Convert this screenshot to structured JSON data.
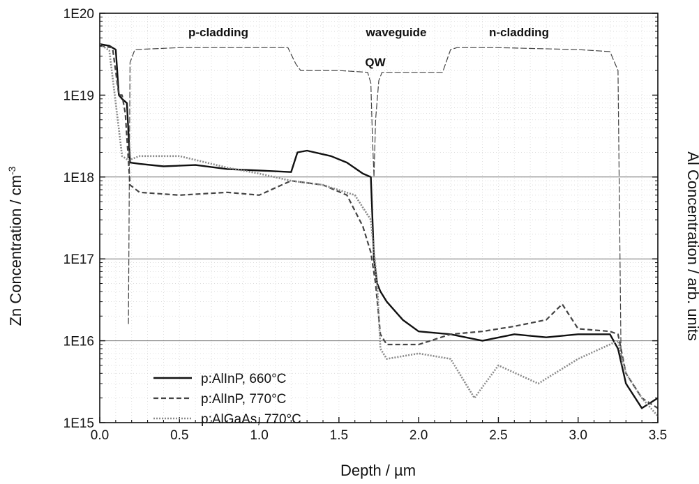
{
  "chart_data": {
    "type": "line",
    "title": "",
    "xlabel": "Depth / µm",
    "ylabel": "Zn Concentration / cm",
    "ylabel_superscript": "-3",
    "y2label": "Al Concentration / arb. units",
    "xlim": [
      0.0,
      3.5
    ],
    "ylim": [
      1000000000000000.0,
      1e+20
    ],
    "yscale": "log",
    "x_ticks": [
      "0.0",
      "0.5",
      "1.0",
      "1.5",
      "2.0",
      "2.5",
      "3.0",
      "3.5"
    ],
    "y_ticks": [
      "1E15",
      "1E16",
      "1E17",
      "1E18",
      "1E19",
      "1E20"
    ],
    "grid": "dotted",
    "reference_lines_y": [
      1e+16,
      1e+17,
      1e+18
    ],
    "region_labels": [
      "p-cladding",
      "waveguide",
      "QW",
      "n-cladding"
    ],
    "legend_position": "lower-left",
    "series": [
      {
        "name": "p:AlInP, 660°C",
        "style": "solid",
        "color": "#111111",
        "x": [
          0.0,
          0.06,
          0.1,
          0.12,
          0.14,
          0.17,
          0.19,
          0.25,
          0.4,
          0.6,
          0.8,
          1.0,
          1.2,
          1.24,
          1.3,
          1.45,
          1.55,
          1.65,
          1.7,
          1.72,
          1.74,
          1.76,
          1.8,
          1.9,
          2.0,
          2.2,
          2.4,
          2.6,
          2.8,
          3.0,
          3.2,
          3.25,
          3.3,
          3.4,
          3.5
        ],
        "y": [
          4.2e+19,
          4e+19,
          3.6e+19,
          1e+19,
          9e+18,
          8e+18,
          1.5e+18,
          1.45e+18,
          1.35e+18,
          1.4e+18,
          1.25e+18,
          1.2e+18,
          1.15e+18,
          2e+18,
          2.1e+18,
          1.8e+18,
          1.5e+18,
          1.1e+18,
          1e+18,
          1e+17,
          5e+16,
          4e+16,
          3e+16,
          1.8e+16,
          1.3e+16,
          1.2e+16,
          1e+16,
          1.2e+16,
          1.1e+16,
          1.2e+16,
          1.2e+16,
          8000000000000000.0,
          3000000000000000.0,
          1500000000000000.0,
          2000000000000000.0
        ]
      },
      {
        "name": "p:AlInP, 770°C",
        "style": "dashed",
        "color": "#444444",
        "x": [
          0.0,
          0.08,
          0.12,
          0.14,
          0.16,
          0.19,
          0.25,
          0.5,
          0.8,
          1.0,
          1.2,
          1.4,
          1.55,
          1.65,
          1.7,
          1.73,
          1.76,
          1.8,
          2.0,
          2.2,
          2.4,
          2.6,
          2.8,
          2.9,
          3.0,
          3.2,
          3.25,
          3.3,
          3.4,
          3.5
        ],
        "y": [
          4e+19,
          3.8e+19,
          1e+19,
          1e+19,
          6e+18,
          8e+17,
          6.5e+17,
          6e+17,
          6.5e+17,
          6e+17,
          9e+17,
          8e+17,
          6e+17,
          2.5e+17,
          1.2e+17,
          5e+16,
          1.2e+16,
          9000000000000000.0,
          9000000000000000.0,
          1.2e+16,
          1.3e+16,
          1.5e+16,
          1.8e+16,
          2.8e+16,
          1.4e+16,
          1.3e+16,
          1.2e+16,
          4000000000000000.0,
          2000000000000000.0,
          1500000000000000.0
        ]
      },
      {
        "name": "p:AlGaAs, 770°C",
        "style": "dotted",
        "color": "#8a8a8a",
        "x": [
          0.0,
          0.06,
          0.1,
          0.14,
          0.18,
          0.25,
          0.5,
          0.8,
          1.0,
          1.2,
          1.4,
          1.6,
          1.7,
          1.74,
          1.76,
          1.8,
          2.0,
          2.2,
          2.35,
          2.5,
          2.75,
          3.0,
          3.25,
          3.3,
          3.4,
          3.5
        ],
        "y": [
          4.2e+19,
          3.5e+19,
          8e+18,
          1.8e+18,
          1.6e+18,
          1.8e+18,
          1.8e+18,
          1.3e+18,
          1.1e+18,
          9e+17,
          8e+17,
          6e+17,
          3e+17,
          5e+16,
          8000000000000000.0,
          6000000000000000.0,
          7000000000000000.0,
          6000000000000000.0,
          2000000000000000.0,
          5000000000000000.0,
          3000000000000000.0,
          6000000000000000.0,
          1e+16,
          4000000000000000.0,
          2000000000000000.0,
          1200000000000000.0
        ]
      },
      {
        "name": "",
        "role": "Al profile (right axis, arb. units)",
        "style": "thin-dashed",
        "color": "#444444",
        "x": [
          0.18,
          0.19,
          0.22,
          0.5,
          1.0,
          1.18,
          1.23,
          1.26,
          1.5,
          1.68,
          1.7,
          1.71,
          1.72,
          1.73,
          1.75,
          1.77,
          2.0,
          2.15,
          2.2,
          2.24,
          2.5,
          3.0,
          3.2,
          3.25,
          3.27
        ],
        "y": [
          1.6e+16,
          2.5e+19,
          3.6e+19,
          3.8e+19,
          3.8e+19,
          3.8e+19,
          2.4e+19,
          2e+19,
          2e+19,
          1.9e+19,
          1.4e+19,
          3e+18,
          1e+18,
          5e+18,
          1.5e+19,
          1.9e+19,
          1.9e+19,
          1.9e+19,
          3.6e+19,
          3.8e+19,
          3.8e+19,
          3.6e+19,
          3.4e+19,
          2e+19,
          5000000000000000.0
        ]
      }
    ]
  }
}
